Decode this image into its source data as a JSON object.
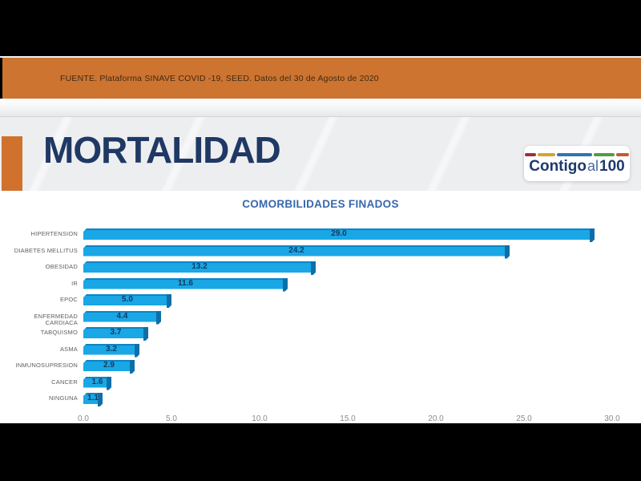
{
  "banner": {
    "source_text": "FUENTE. Plataforma SINAVE COVID -19, SEED. Datos del 30 de Agosto de 2020"
  },
  "header": {
    "title": "MORTALIDAD",
    "logo": {
      "part1": "Contigo",
      "part2": "al",
      "part3": "100",
      "stripe_colors": [
        "#9e3039",
        "#d4a432",
        "#2f74b5",
        "#4f9e3f",
        "#c65a33"
      ],
      "stripe_widths": [
        14,
        22,
        44,
        26,
        16
      ]
    }
  },
  "chart_data": {
    "type": "bar",
    "orientation": "horizontal",
    "title": "COMORBILIDADES FINADOS",
    "categories": [
      "HIPERTENSION",
      "DIABETES MELLITUS",
      "OBESIDAD",
      "IR",
      "EPOC",
      "ENFERMEDAD CARDIACA",
      "TABQUISMO",
      "ASMA",
      "INMUNOSUPRESION",
      "CANCER",
      "NINGUNA"
    ],
    "values": [
      29.0,
      24.2,
      13.2,
      11.6,
      5.0,
      4.4,
      3.7,
      3.2,
      2.9,
      1.6,
      1.1
    ],
    "value_labels": [
      "29.0",
      "24.2",
      "13.2",
      "11.6",
      "5.0",
      "4.4",
      "3.7",
      "3.2",
      "2.9",
      "1.6",
      "1.1"
    ],
    "xlim": [
      0,
      30
    ],
    "x_ticks": [
      "0.0",
      "5.0",
      "10.0",
      "15.0",
      "20.0",
      "25.0",
      "30.0"
    ],
    "grid": false,
    "legend": false,
    "bar_color": "#19a7e6",
    "bar_top_edge_color": "#0d84c4",
    "bar_cap_color": "#0e6fa8",
    "value_label_color": "#143a60"
  },
  "colors": {
    "banner_orange": "#cd7431",
    "accent_orange": "#d0722e",
    "title_navy": "#1f3864",
    "chart_title_blue": "#3767ae",
    "category_label_gray": "#5f5f5f",
    "tick_gray": "#8a8a8a",
    "slide_header_gray": "#edeef0"
  }
}
